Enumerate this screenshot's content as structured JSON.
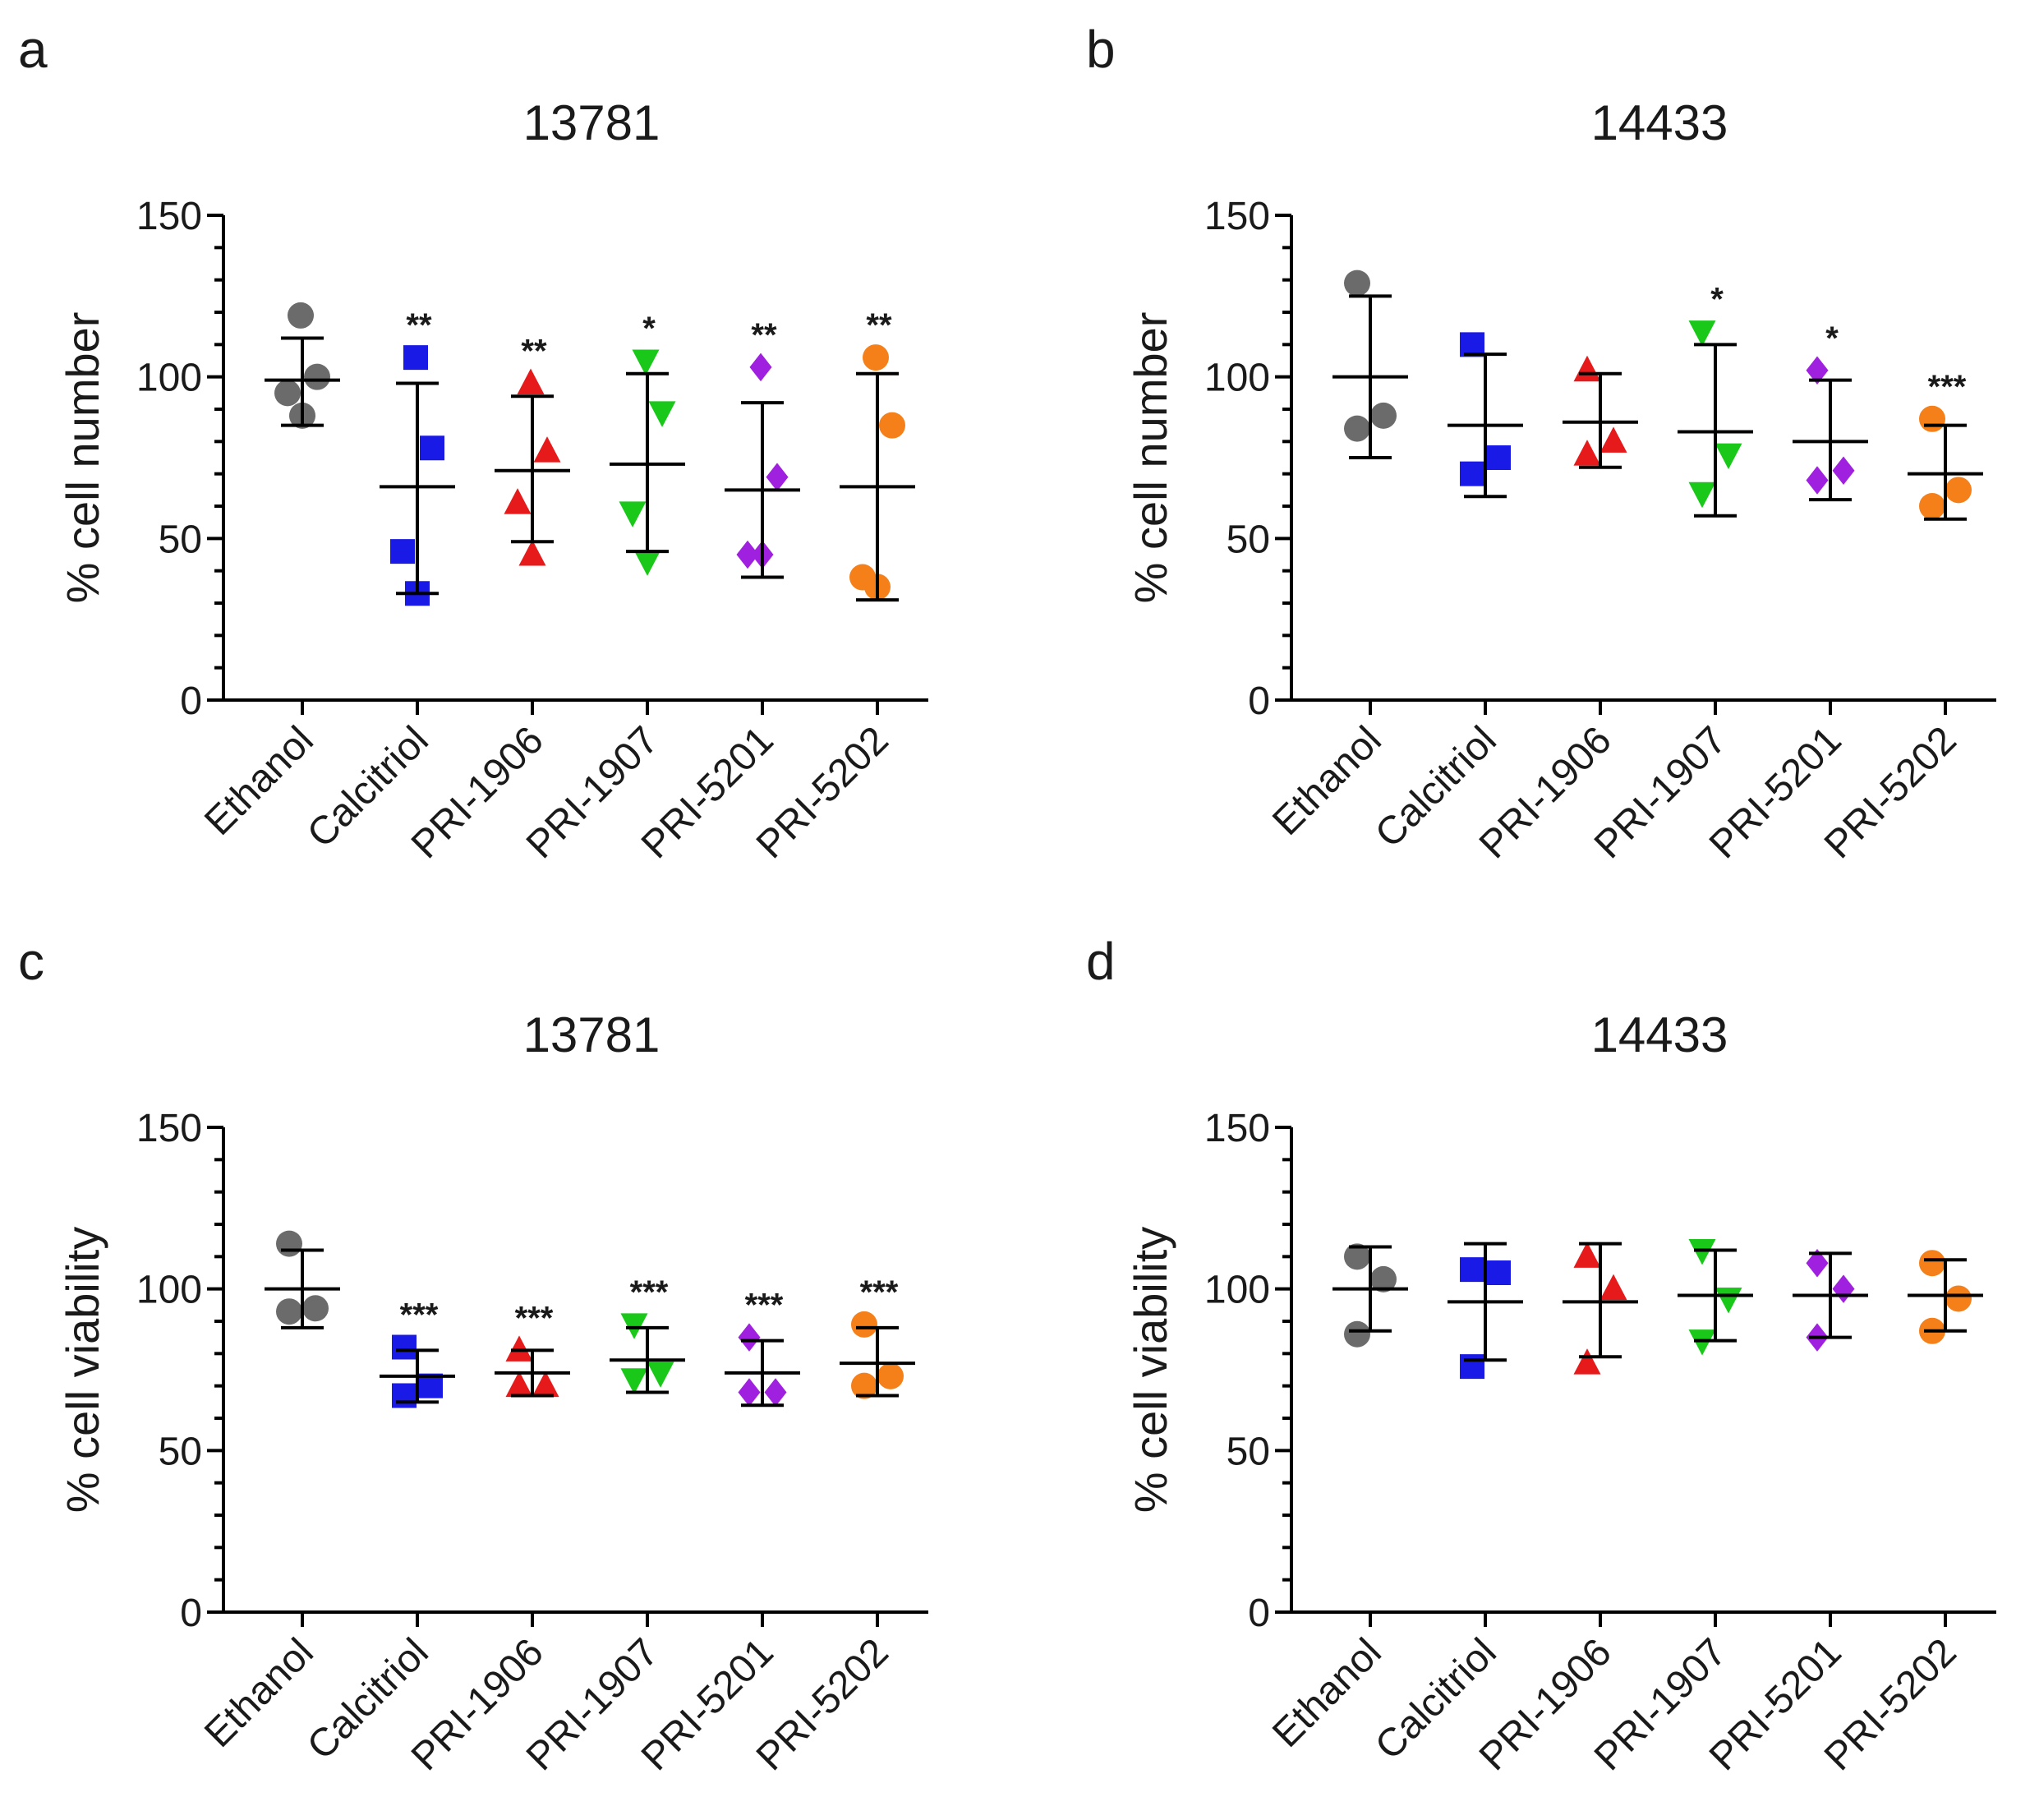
{
  "chart_data": [
    {
      "panel": "a",
      "type": "scatter",
      "title": "13781",
      "ylabel": "% cell number",
      "ylim": [
        0,
        150
      ],
      "yticks": [
        0,
        50,
        100,
        150
      ],
      "categories": [
        "Ethanol",
        "Calcitriol",
        "PRI-1906",
        "PRI-1907",
        "PRI-5201",
        "PRI-5202"
      ],
      "series": [
        {
          "name": "Ethanol",
          "marker": "circle",
          "color": "#6b6b6b",
          "points": [
            119,
            100,
            95,
            88
          ],
          "mean": 99,
          "sd_low": 85,
          "sd_high": 112,
          "sig": ""
        },
        {
          "name": "Calcitriol",
          "marker": "square",
          "color": "#1a1ae6",
          "points": [
            106,
            78,
            46,
            33
          ],
          "mean": 66,
          "sd_low": 33,
          "sd_high": 98,
          "sig": "**"
        },
        {
          "name": "PRI-1906",
          "marker": "triangle-up",
          "color": "#e61a1a",
          "points": [
            98,
            77,
            61,
            45
          ],
          "mean": 71,
          "sd_low": 49,
          "sd_high": 94,
          "sig": "**"
        },
        {
          "name": "PRI-1907",
          "marker": "triangle-down",
          "color": "#1ac81a",
          "points": [
            105,
            89,
            58,
            43
          ],
          "mean": 73,
          "sd_low": 46,
          "sd_high": 101,
          "sig": "*"
        },
        {
          "name": "PRI-5201",
          "marker": "diamond",
          "color": "#a020e0",
          "points": [
            103,
            69,
            45,
            45
          ],
          "mean": 65,
          "sd_low": 38,
          "sd_high": 92,
          "sig": "**"
        },
        {
          "name": "PRI-5202",
          "marker": "circle",
          "color": "#f5801a",
          "points": [
            106,
            85,
            38,
            35
          ],
          "mean": 66,
          "sd_low": 31,
          "sd_high": 101,
          "sig": "**"
        }
      ]
    },
    {
      "panel": "b",
      "type": "scatter",
      "title": "14433",
      "ylabel": "% cell number",
      "ylim": [
        0,
        150
      ],
      "yticks": [
        0,
        50,
        100,
        150
      ],
      "categories": [
        "Ethanol",
        "Calcitriol",
        "PRI-1906",
        "PRI-1907",
        "PRI-5201",
        "PRI-5202"
      ],
      "series": [
        {
          "name": "Ethanol",
          "marker": "circle",
          "color": "#6b6b6b",
          "points": [
            129,
            88,
            84
          ],
          "mean": 100,
          "sd_low": 75,
          "sd_high": 125,
          "sig": ""
        },
        {
          "name": "Calcitriol",
          "marker": "square",
          "color": "#1a1ae6",
          "points": [
            110,
            75,
            70
          ],
          "mean": 85,
          "sd_low": 63,
          "sd_high": 107,
          "sig": ""
        },
        {
          "name": "PRI-1906",
          "marker": "triangle-up",
          "color": "#e61a1a",
          "points": [
            102,
            80,
            76
          ],
          "mean": 86,
          "sd_low": 72,
          "sd_high": 101,
          "sig": ""
        },
        {
          "name": "PRI-1907",
          "marker": "triangle-down",
          "color": "#1ac81a",
          "points": [
            114,
            76,
            64
          ],
          "mean": 83,
          "sd_low": 57,
          "sd_high": 110,
          "sig": "*"
        },
        {
          "name": "PRI-5201",
          "marker": "diamond",
          "color": "#a020e0",
          "points": [
            102,
            71,
            68
          ],
          "mean": 80,
          "sd_low": 62,
          "sd_high": 99,
          "sig": "*"
        },
        {
          "name": "PRI-5202",
          "marker": "circle",
          "color": "#f5801a",
          "points": [
            87,
            65,
            60
          ],
          "mean": 70,
          "sd_low": 56,
          "sd_high": 85,
          "sig": "***"
        }
      ]
    },
    {
      "panel": "c",
      "type": "scatter",
      "title": "13781",
      "ylabel": "% cell viability",
      "ylim": [
        0,
        150
      ],
      "yticks": [
        0,
        50,
        100,
        150
      ],
      "categories": [
        "Ethanol",
        "Calcitriol",
        "PRI-1906",
        "PRI-1907",
        "PRI-5201",
        "PRI-5202"
      ],
      "series": [
        {
          "name": "Ethanol",
          "marker": "circle",
          "color": "#6b6b6b",
          "points": [
            114,
            94,
            93
          ],
          "mean": 100,
          "sd_low": 88,
          "sd_high": 112,
          "sig": ""
        },
        {
          "name": "Calcitriol",
          "marker": "square",
          "color": "#1a1ae6",
          "points": [
            82,
            70,
            67
          ],
          "mean": 73,
          "sd_low": 65,
          "sd_high": 81,
          "sig": "***"
        },
        {
          "name": "PRI-1906",
          "marker": "triangle-up",
          "color": "#e61a1a",
          "points": [
            81,
            70,
            70
          ],
          "mean": 74,
          "sd_low": 67,
          "sd_high": 81,
          "sig": "***"
        },
        {
          "name": "PRI-1907",
          "marker": "triangle-down",
          "color": "#1ac81a",
          "points": [
            89,
            74,
            72
          ],
          "mean": 78,
          "sd_low": 68,
          "sd_high": 88,
          "sig": "***"
        },
        {
          "name": "PRI-5201",
          "marker": "diamond",
          "color": "#a020e0",
          "points": [
            85,
            68,
            68
          ],
          "mean": 74,
          "sd_low": 64,
          "sd_high": 84,
          "sig": "***"
        },
        {
          "name": "PRI-5202",
          "marker": "circle",
          "color": "#f5801a",
          "points": [
            89,
            73,
            70
          ],
          "mean": 77,
          "sd_low": 67,
          "sd_high": 88,
          "sig": "***"
        }
      ]
    },
    {
      "panel": "d",
      "type": "scatter",
      "title": "14433",
      "ylabel": "% cell viability",
      "ylim": [
        0,
        150
      ],
      "yticks": [
        0,
        50,
        100,
        150
      ],
      "categories": [
        "Ethanol",
        "Calcitriol",
        "PRI-1906",
        "PRI-1907",
        "PRI-5201",
        "PRI-5202"
      ],
      "series": [
        {
          "name": "Ethanol",
          "marker": "circle",
          "color": "#6b6b6b",
          "points": [
            110,
            103,
            86
          ],
          "mean": 100,
          "sd_low": 87,
          "sd_high": 113,
          "sig": ""
        },
        {
          "name": "Calcitriol",
          "marker": "square",
          "color": "#1a1ae6",
          "points": [
            106,
            105,
            76
          ],
          "mean": 96,
          "sd_low": 78,
          "sd_high": 114,
          "sig": ""
        },
        {
          "name": "PRI-1906",
          "marker": "triangle-up",
          "color": "#e61a1a",
          "points": [
            110,
            100,
            77
          ],
          "mean": 96,
          "sd_low": 79,
          "sd_high": 114,
          "sig": ""
        },
        {
          "name": "PRI-1907",
          "marker": "triangle-down",
          "color": "#1ac81a",
          "points": [
            112,
            97,
            84
          ],
          "mean": 98,
          "sd_low": 84,
          "sd_high": 112,
          "sig": ""
        },
        {
          "name": "PRI-5201",
          "marker": "diamond",
          "color": "#a020e0",
          "points": [
            108,
            100,
            85
          ],
          "mean": 98,
          "sd_low": 85,
          "sd_high": 111,
          "sig": ""
        },
        {
          "name": "PRI-5202",
          "marker": "circle",
          "color": "#f5801a",
          "points": [
            108,
            97,
            87
          ],
          "mean": 98,
          "sd_low": 87,
          "sd_high": 109,
          "sig": ""
        }
      ]
    }
  ]
}
